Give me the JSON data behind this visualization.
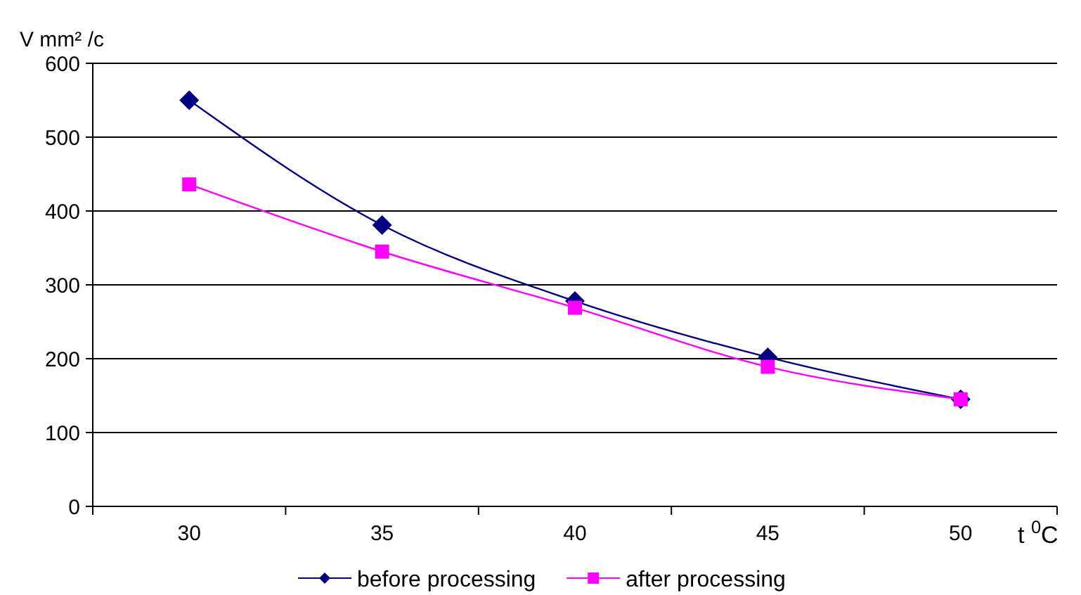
{
  "chart_data": {
    "type": "line",
    "ylabel": "V mm² /c",
    "xlabel": "t $^{0}$C",
    "categories": [
      "30",
      "35",
      "40",
      "45",
      "50"
    ],
    "series": [
      {
        "name": "before processing",
        "color": "#000080",
        "marker": "diamond",
        "values": [
          550,
          381,
          278,
          202,
          145
        ]
      },
      {
        "name": "after processing",
        "color": "#ff00ff",
        "marker": "square",
        "values": [
          436,
          345,
          269,
          189,
          145
        ]
      }
    ],
    "ylim": [
      0,
      600
    ],
    "yticks": [
      0,
      100,
      200,
      300,
      400,
      500,
      600
    ],
    "grid": "y",
    "legend": "bottom",
    "line_style": "solid"
  }
}
